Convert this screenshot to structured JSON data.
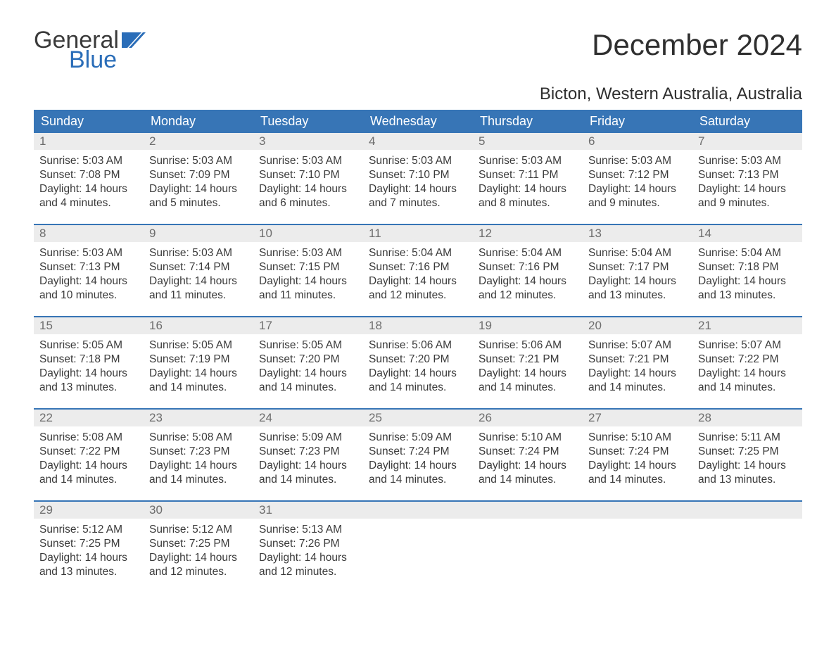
{
  "logo": {
    "word1": "General",
    "word2": "Blue",
    "flag_color": "#2a6db8"
  },
  "title": "December 2024",
  "location": "Bicton, Western Australia, Australia",
  "colors": {
    "header_bg": "#3775b6",
    "header_text": "#ffffff",
    "daynum_bg": "#ececec",
    "daynum_text": "#6d6d6d",
    "body_text": "#3a3a3a",
    "rule": "#3775b6",
    "page_bg": "#ffffff"
  },
  "typography": {
    "title_fontsize": 42,
    "location_fontsize": 24,
    "dayheader_fontsize": 18,
    "body_fontsize": 15.5,
    "logo_fontsize": 34
  },
  "day_headers": [
    "Sunday",
    "Monday",
    "Tuesday",
    "Wednesday",
    "Thursday",
    "Friday",
    "Saturday"
  ],
  "weeks": [
    [
      {
        "num": "1",
        "sunrise": "Sunrise: 5:03 AM",
        "sunset": "Sunset: 7:08 PM",
        "dl1": "Daylight: 14 hours",
        "dl2": "and 4 minutes."
      },
      {
        "num": "2",
        "sunrise": "Sunrise: 5:03 AM",
        "sunset": "Sunset: 7:09 PM",
        "dl1": "Daylight: 14 hours",
        "dl2": "and 5 minutes."
      },
      {
        "num": "3",
        "sunrise": "Sunrise: 5:03 AM",
        "sunset": "Sunset: 7:10 PM",
        "dl1": "Daylight: 14 hours",
        "dl2": "and 6 minutes."
      },
      {
        "num": "4",
        "sunrise": "Sunrise: 5:03 AM",
        "sunset": "Sunset: 7:10 PM",
        "dl1": "Daylight: 14 hours",
        "dl2": "and 7 minutes."
      },
      {
        "num": "5",
        "sunrise": "Sunrise: 5:03 AM",
        "sunset": "Sunset: 7:11 PM",
        "dl1": "Daylight: 14 hours",
        "dl2": "and 8 minutes."
      },
      {
        "num": "6",
        "sunrise": "Sunrise: 5:03 AM",
        "sunset": "Sunset: 7:12 PM",
        "dl1": "Daylight: 14 hours",
        "dl2": "and 9 minutes."
      },
      {
        "num": "7",
        "sunrise": "Sunrise: 5:03 AM",
        "sunset": "Sunset: 7:13 PM",
        "dl1": "Daylight: 14 hours",
        "dl2": "and 9 minutes."
      }
    ],
    [
      {
        "num": "8",
        "sunrise": "Sunrise: 5:03 AM",
        "sunset": "Sunset: 7:13 PM",
        "dl1": "Daylight: 14 hours",
        "dl2": "and 10 minutes."
      },
      {
        "num": "9",
        "sunrise": "Sunrise: 5:03 AM",
        "sunset": "Sunset: 7:14 PM",
        "dl1": "Daylight: 14 hours",
        "dl2": "and 11 minutes."
      },
      {
        "num": "10",
        "sunrise": "Sunrise: 5:03 AM",
        "sunset": "Sunset: 7:15 PM",
        "dl1": "Daylight: 14 hours",
        "dl2": "and 11 minutes."
      },
      {
        "num": "11",
        "sunrise": "Sunrise: 5:04 AM",
        "sunset": "Sunset: 7:16 PM",
        "dl1": "Daylight: 14 hours",
        "dl2": "and 12 minutes."
      },
      {
        "num": "12",
        "sunrise": "Sunrise: 5:04 AM",
        "sunset": "Sunset: 7:16 PM",
        "dl1": "Daylight: 14 hours",
        "dl2": "and 12 minutes."
      },
      {
        "num": "13",
        "sunrise": "Sunrise: 5:04 AM",
        "sunset": "Sunset: 7:17 PM",
        "dl1": "Daylight: 14 hours",
        "dl2": "and 13 minutes."
      },
      {
        "num": "14",
        "sunrise": "Sunrise: 5:04 AM",
        "sunset": "Sunset: 7:18 PM",
        "dl1": "Daylight: 14 hours",
        "dl2": "and 13 minutes."
      }
    ],
    [
      {
        "num": "15",
        "sunrise": "Sunrise: 5:05 AM",
        "sunset": "Sunset: 7:18 PM",
        "dl1": "Daylight: 14 hours",
        "dl2": "and 13 minutes."
      },
      {
        "num": "16",
        "sunrise": "Sunrise: 5:05 AM",
        "sunset": "Sunset: 7:19 PM",
        "dl1": "Daylight: 14 hours",
        "dl2": "and 14 minutes."
      },
      {
        "num": "17",
        "sunrise": "Sunrise: 5:05 AM",
        "sunset": "Sunset: 7:20 PM",
        "dl1": "Daylight: 14 hours",
        "dl2": "and 14 minutes."
      },
      {
        "num": "18",
        "sunrise": "Sunrise: 5:06 AM",
        "sunset": "Sunset: 7:20 PM",
        "dl1": "Daylight: 14 hours",
        "dl2": "and 14 minutes."
      },
      {
        "num": "19",
        "sunrise": "Sunrise: 5:06 AM",
        "sunset": "Sunset: 7:21 PM",
        "dl1": "Daylight: 14 hours",
        "dl2": "and 14 minutes."
      },
      {
        "num": "20",
        "sunrise": "Sunrise: 5:07 AM",
        "sunset": "Sunset: 7:21 PM",
        "dl1": "Daylight: 14 hours",
        "dl2": "and 14 minutes."
      },
      {
        "num": "21",
        "sunrise": "Sunrise: 5:07 AM",
        "sunset": "Sunset: 7:22 PM",
        "dl1": "Daylight: 14 hours",
        "dl2": "and 14 minutes."
      }
    ],
    [
      {
        "num": "22",
        "sunrise": "Sunrise: 5:08 AM",
        "sunset": "Sunset: 7:22 PM",
        "dl1": "Daylight: 14 hours",
        "dl2": "and 14 minutes."
      },
      {
        "num": "23",
        "sunrise": "Sunrise: 5:08 AM",
        "sunset": "Sunset: 7:23 PM",
        "dl1": "Daylight: 14 hours",
        "dl2": "and 14 minutes."
      },
      {
        "num": "24",
        "sunrise": "Sunrise: 5:09 AM",
        "sunset": "Sunset: 7:23 PM",
        "dl1": "Daylight: 14 hours",
        "dl2": "and 14 minutes."
      },
      {
        "num": "25",
        "sunrise": "Sunrise: 5:09 AM",
        "sunset": "Sunset: 7:24 PM",
        "dl1": "Daylight: 14 hours",
        "dl2": "and 14 minutes."
      },
      {
        "num": "26",
        "sunrise": "Sunrise: 5:10 AM",
        "sunset": "Sunset: 7:24 PM",
        "dl1": "Daylight: 14 hours",
        "dl2": "and 14 minutes."
      },
      {
        "num": "27",
        "sunrise": "Sunrise: 5:10 AM",
        "sunset": "Sunset: 7:24 PM",
        "dl1": "Daylight: 14 hours",
        "dl2": "and 14 minutes."
      },
      {
        "num": "28",
        "sunrise": "Sunrise: 5:11 AM",
        "sunset": "Sunset: 7:25 PM",
        "dl1": "Daylight: 14 hours",
        "dl2": "and 13 minutes."
      }
    ],
    [
      {
        "num": "29",
        "sunrise": "Sunrise: 5:12 AM",
        "sunset": "Sunset: 7:25 PM",
        "dl1": "Daylight: 14 hours",
        "dl2": "and 13 minutes."
      },
      {
        "num": "30",
        "sunrise": "Sunrise: 5:12 AM",
        "sunset": "Sunset: 7:25 PM",
        "dl1": "Daylight: 14 hours",
        "dl2": "and 12 minutes."
      },
      {
        "num": "31",
        "sunrise": "Sunrise: 5:13 AM",
        "sunset": "Sunset: 7:26 PM",
        "dl1": "Daylight: 14 hours",
        "dl2": "and 12 minutes."
      },
      null,
      null,
      null,
      null
    ]
  ]
}
